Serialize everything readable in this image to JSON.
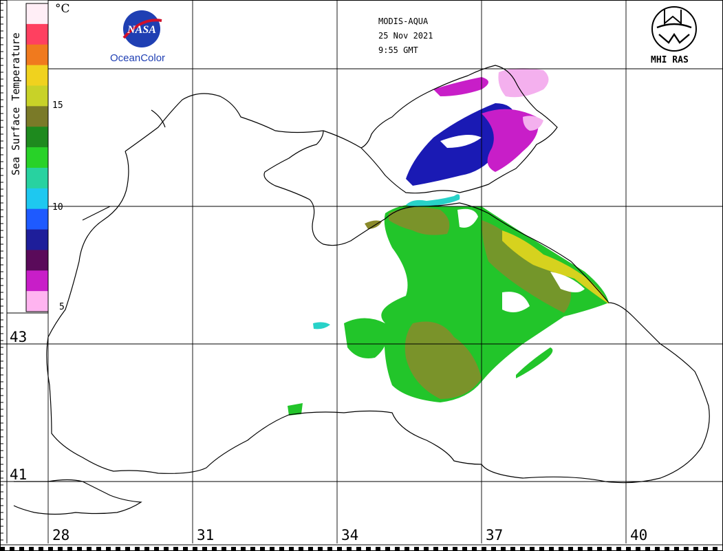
{
  "header": {
    "satellite": "MODIS-AQUA",
    "date": "25 Nov 2021",
    "time": "9:55 GMT"
  },
  "logos": {
    "nasa_emblem": "NASA",
    "nasa_caption": "OceanColor",
    "mhi_caption": "MHI RAS"
  },
  "colorbar": {
    "title": "Sea Surface Temperature",
    "unit": "°C",
    "ticks": [
      "15",
      "10",
      "5"
    ],
    "colors": [
      "#ffeef6",
      "#ff4060",
      "#f07a1e",
      "#f0d21e",
      "#c8d228",
      "#7a7a28",
      "#1e8a1e",
      "#28d228",
      "#28d2a0",
      "#1ec8f0",
      "#1e5aff",
      "#1e1e9a",
      "#5a0a5a",
      "#c81ec8",
      "#ffb4f0"
    ]
  },
  "grid": {
    "latitudes": [
      "43",
      "41"
    ],
    "longitudes": [
      "28",
      "31",
      "34",
      "37",
      "40"
    ]
  },
  "colors": {
    "coast": "#000000",
    "grid": "#000000",
    "green": "#22c52a",
    "olive": "#8a8a2a",
    "yellow": "#d6d21e",
    "blue": "#1a1ab4",
    "magenta": "#c81ec8",
    "pink": "#f4b0ee"
  }
}
